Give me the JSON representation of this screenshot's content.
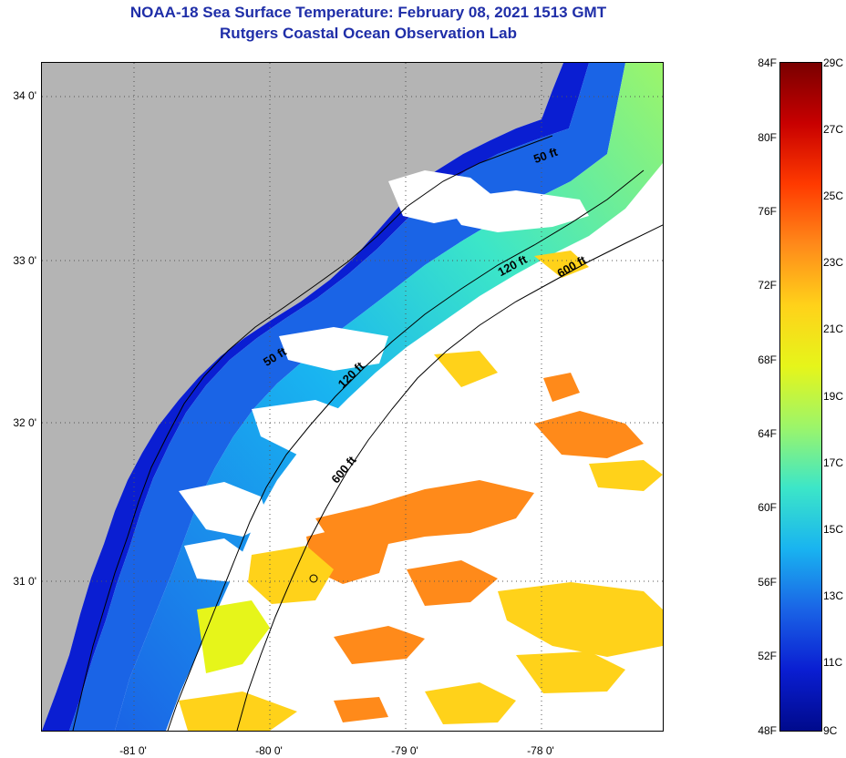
{
  "header": {
    "title": "NOAA-18 Sea Surface Temperature:  February 08, 2021 1513 GMT",
    "subtitle": "Rutgers Coastal Ocean Observation Lab"
  },
  "axes": {
    "lat_ticks": [
      "34 0'",
      "33 0'",
      "32 0'",
      "31 0'"
    ],
    "lon_ticks": [
      "-81 0'",
      "-80 0'",
      "-79 0'",
      "-78 0'"
    ]
  },
  "contours": {
    "labels": [
      "50 ft",
      "120 ft",
      "600 ft",
      "50 ft",
      "120 ft",
      "600 ft"
    ]
  },
  "colorbar": {
    "fahrenheit": [
      "84F",
      "80F",
      "76F",
      "72F",
      "68F",
      "64F",
      "60F",
      "56F",
      "52F",
      "48F"
    ],
    "celsius": [
      "29C",
      "27C",
      "25C",
      "23C",
      "21C",
      "19C",
      "17C",
      "15C",
      "13C",
      "11C",
      "9C"
    ],
    "colors": [
      "#7a0000",
      "#c80000",
      "#ff3a00",
      "#ff8a1a",
      "#ffd21a",
      "#e6f51a",
      "#9cf56a",
      "#3ce6c8",
      "#19b4f0",
      "#1a64e6",
      "#0a1ed2",
      "#000a8c"
    ]
  },
  "colors": {
    "land": "#b4b4b4",
    "cloud": "#ffffff",
    "title": "#1f2ea8"
  }
}
